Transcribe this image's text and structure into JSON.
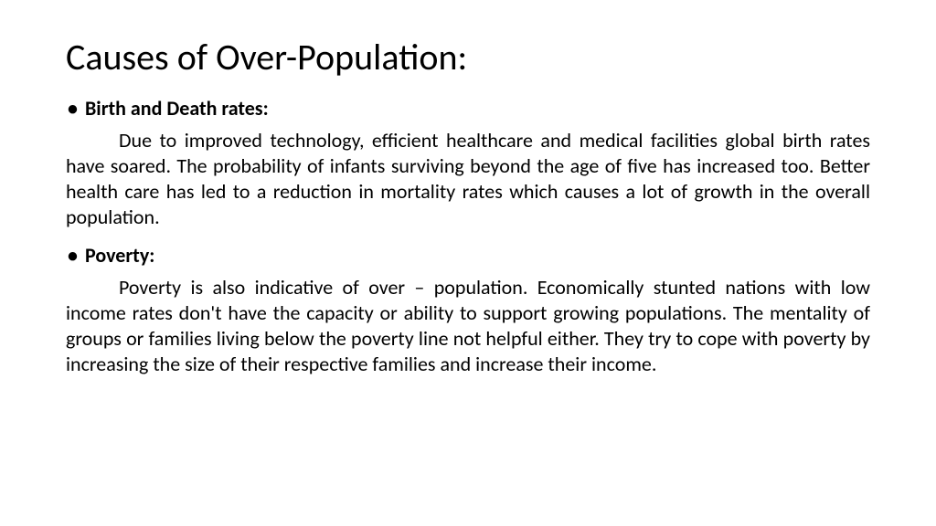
{
  "title": "Causes of Over-Population:",
  "sections": [
    {
      "label": "Birth and Death rates:",
      "body": "Due to improved technology, efficient healthcare and medical facilities global birth rates have soared. The probability of infants surviving beyond the age of five has increased too. Better health care has led to a reduction in mortality rates which causes a lot of growth in the overall population."
    },
    {
      "label": "Poverty:",
      "body": "Poverty is also indicative of over – population. Economically stunted nations with low income rates don't have the capacity or ability to support growing populations. The mentality of groups or families living below the poverty line not helpful either. They try to cope with poverty by increasing the size of their respective families and increase their income."
    }
  ],
  "colors": {
    "background": "#ffffff",
    "text": "#000000"
  },
  "typography": {
    "title_fontsize": 40,
    "body_fontsize": 22,
    "font_family": "Calibri"
  }
}
